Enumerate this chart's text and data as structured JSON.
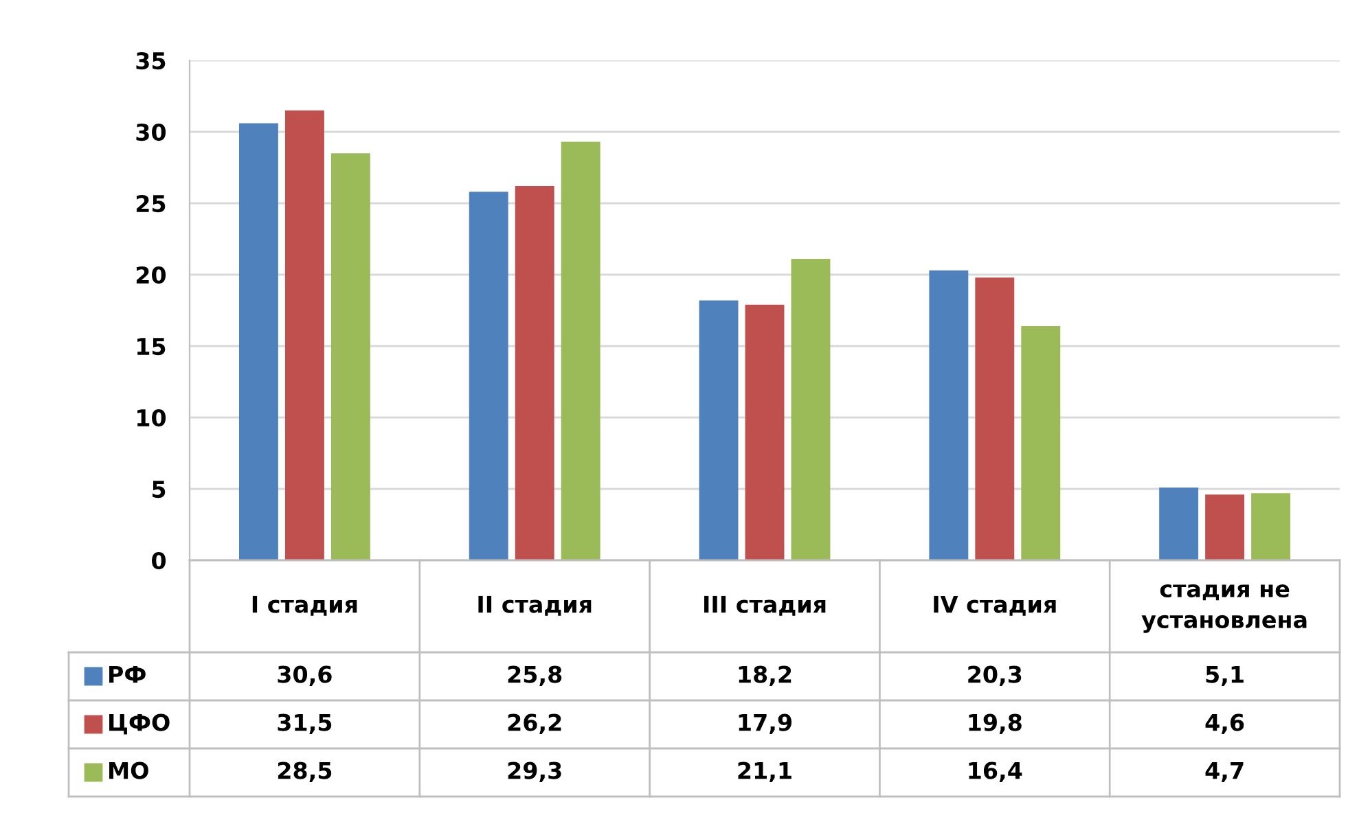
{
  "chart_data": {
    "type": "bar",
    "categories": [
      "I стадия",
      "II стадия",
      "III стадия",
      "IV стадия",
      "стадия не установлена"
    ],
    "series": [
      {
        "name": "РФ",
        "color": "#4f81bd",
        "values": [
          30.6,
          25.8,
          18.2,
          20.3,
          5.1
        ],
        "value_labels": [
          "30,6",
          "25,8",
          "18,2",
          "20,3",
          "5,1"
        ]
      },
      {
        "name": "ЦФО",
        "color": "#c0504d",
        "values": [
          31.5,
          26.2,
          17.9,
          19.8,
          4.6
        ],
        "value_labels": [
          "31,5",
          "26,2",
          "17,9",
          "19,8",
          "4,6"
        ]
      },
      {
        "name": "МО",
        "color": "#9bbb59",
        "values": [
          28.5,
          29.3,
          21.1,
          16.4,
          4.7
        ],
        "value_labels": [
          "28,5",
          "29,3",
          "21,1",
          "16,4",
          "4,7"
        ]
      }
    ],
    "ylim": [
      0,
      35
    ],
    "yticks": [
      0,
      5,
      10,
      15,
      20,
      25,
      30,
      35
    ],
    "grid": "y",
    "legend": "bottom"
  }
}
